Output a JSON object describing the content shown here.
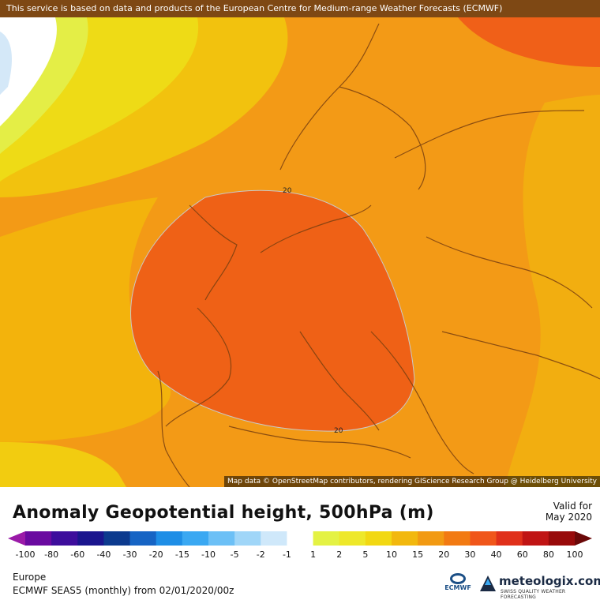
{
  "banner": "This service is based on data and products of the European Centre for Medium-range Weather Forecasts (ECMWF)",
  "attribution": "Map data © OpenStreetMap contributors, rendering GIScience Research Group @ Heidelberg University",
  "contour_labels": [
    "20",
    "20"
  ],
  "title": "Anomaly Geopotential height, 500hPa (m)",
  "valid": {
    "line1": "Valid for",
    "line2": "May 2020"
  },
  "legend": {
    "ticks": [
      "-100",
      "-80",
      "-60",
      "-40",
      "-30",
      "-20",
      "-15",
      "-10",
      "-5",
      "-2",
      "-1",
      "1",
      "2",
      "5",
      "10",
      "15",
      "20",
      "30",
      "40",
      "60",
      "80",
      "100"
    ],
    "colors": [
      "#9a1aa8",
      "#6a0aa0",
      "#3d0d9c",
      "#1a158e",
      "#0c3a8e",
      "#1664c4",
      "#1e8ee6",
      "#3aa8f2",
      "#6cc0f6",
      "#a0d6f8",
      "#cfe8fa",
      "#ffffff",
      "#e4f244",
      "#eee82a",
      "#f2d812",
      "#f2b80e",
      "#f29a12",
      "#f27a12",
      "#f0561a",
      "#e0301a",
      "#c01414",
      "#980a0a",
      "#6a0808"
    ]
  },
  "region": "Europe",
  "model_info": "ECMWF SEAS5 (monthly) from 02/01/2020/00z",
  "ecmwf_logo_text": "ECMWF",
  "meteologix": {
    "name": "meteologix.com",
    "tagline": "SWISS QUALITY WEATHER FORECASTING"
  }
}
